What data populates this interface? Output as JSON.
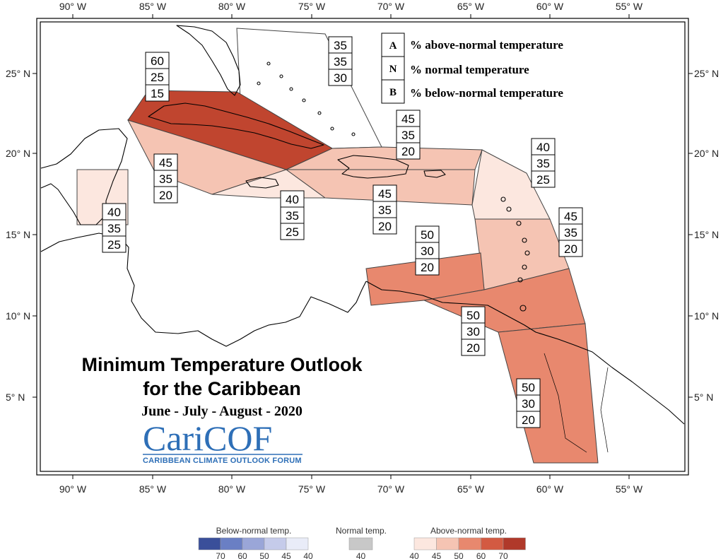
{
  "map": {
    "title_line1": "Minimum Temperature Outlook",
    "title_line2": "for the Caribbean",
    "period": "June - July - August - 2020",
    "logo_text": "CariCOF",
    "logo_subtitle": "CARIBBEAN CLIMATE OUTLOOK FORUM",
    "longitude_labels": [
      "90° W",
      "85° W",
      "80° W",
      "75° W",
      "70° W",
      "65° W",
      "60° W",
      "55° W"
    ],
    "latitude_labels": [
      "25° N",
      "20° N",
      "15° N",
      "10° N",
      "5° N"
    ]
  },
  "legend": {
    "rows": [
      {
        "key": "A",
        "text": "% above-normal temperature"
      },
      {
        "key": "N",
        "text": "% normal temperature"
      },
      {
        "key": "B",
        "text": "% below-normal temperature"
      }
    ]
  },
  "zones": [
    {
      "id": "cuba",
      "A": 60,
      "N": 25,
      "B": 15,
      "color": "#c0452f"
    },
    {
      "id": "bahamas",
      "A": 35,
      "N": 35,
      "B": 30,
      "color": "#ffffff"
    },
    {
      "id": "cayman",
      "A": 45,
      "N": 35,
      "B": 20,
      "color": "#f5c4b3"
    },
    {
      "id": "jamaica",
      "A": 40,
      "N": 35,
      "B": 25,
      "color": "#fce7df"
    },
    {
      "id": "belize",
      "A": 40,
      "N": 35,
      "B": 25,
      "color": "#fce7df"
    },
    {
      "id": "hispaniola-north",
      "A": 45,
      "N": 35,
      "B": 20,
      "color": "#f5c4b3"
    },
    {
      "id": "hispaniola-south",
      "A": 45,
      "N": 35,
      "B": 20,
      "color": "#f5c4b3"
    },
    {
      "id": "leeward",
      "A": 40,
      "N": 35,
      "B": 25,
      "color": "#fce7df"
    },
    {
      "id": "windward",
      "A": 45,
      "N": 35,
      "B": 20,
      "color": "#f5c4b3"
    },
    {
      "id": "abc-islands",
      "A": 50,
      "N": 30,
      "B": 20,
      "color": "#e8886e"
    },
    {
      "id": "trinidad",
      "A": 50,
      "N": 30,
      "B": 20,
      "color": "#e8886e"
    },
    {
      "id": "guianas",
      "A": 50,
      "N": 30,
      "B": 20,
      "color": "#e8886e"
    }
  ],
  "colorbar": {
    "below": {
      "label": "Below-normal temp.",
      "ticks": [
        "70",
        "60",
        "50",
        "45",
        "40"
      ],
      "colors": [
        "#3a4f9a",
        "#6a7fc4",
        "#9aa6d8",
        "#c5cbea",
        "#e9ecf8"
      ]
    },
    "normal": {
      "label": "Normal temp.",
      "ticks": [
        "40"
      ],
      "colors": [
        "#c8c8c8"
      ]
    },
    "above": {
      "label": "Above-normal temp.",
      "ticks": [
        "40",
        "45",
        "50",
        "60",
        "70"
      ],
      "colors": [
        "#fce7df",
        "#f5c4b3",
        "#e8886e",
        "#d35a42",
        "#b0392a"
      ]
    }
  }
}
